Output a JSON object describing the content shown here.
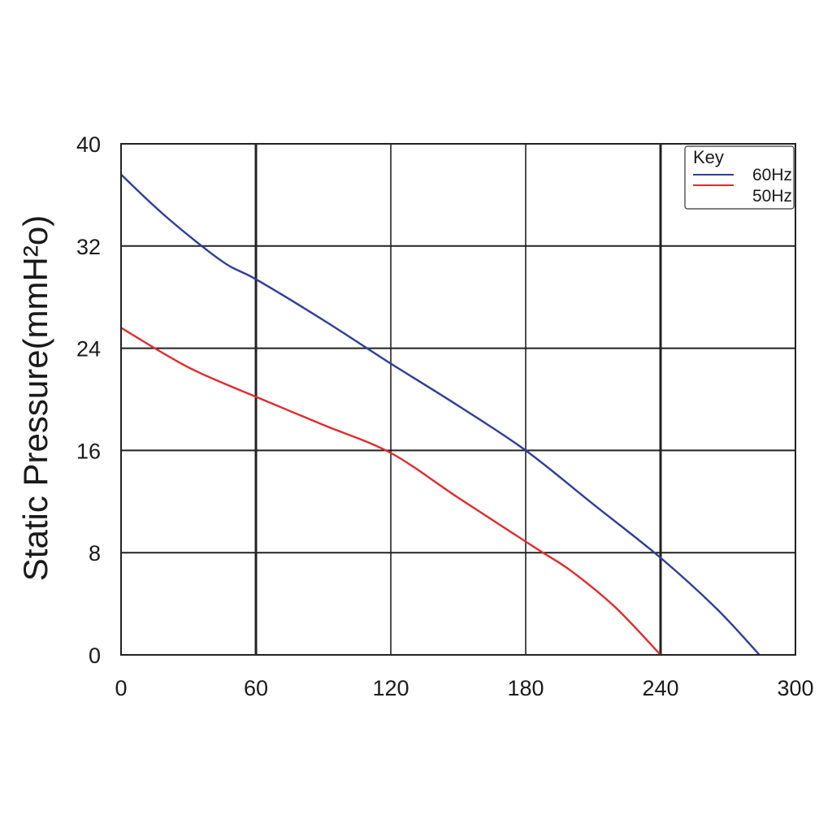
{
  "chart_data": {
    "type": "line",
    "xlabel": "",
    "ylabel": "Static Pressure(mmH²o)",
    "xlim": [
      0,
      300
    ],
    "ylim": [
      0,
      40
    ],
    "xticks": [
      "0",
      "60",
      "120",
      "180",
      "240",
      "300"
    ],
    "yticks": [
      "0",
      "8",
      "16",
      "24",
      "32",
      "40"
    ],
    "grid": true,
    "legend": {
      "title": "Key",
      "placement": "top-right",
      "entries": [
        "60Hz",
        "50Hz"
      ]
    },
    "series": [
      {
        "name": "60Hz",
        "color": "#2e3d9b",
        "x": [
          0,
          20,
          45,
          60,
          90,
          120,
          150,
          180,
          210,
          240,
          265,
          284
        ],
        "y": [
          37.6,
          34.3,
          30.8,
          29.4,
          26.2,
          22.8,
          19.5,
          16.0,
          11.8,
          7.6,
          3.6,
          0
        ]
      },
      {
        "name": "50Hz",
        "color": "#e02b2b",
        "x": [
          0,
          30,
          60,
          90,
          120,
          150,
          185,
          200,
          220,
          240
        ],
        "y": [
          25.6,
          22.5,
          20.2,
          18.0,
          15.8,
          12.3,
          8.3,
          6.6,
          3.7,
          0
        ]
      }
    ]
  }
}
